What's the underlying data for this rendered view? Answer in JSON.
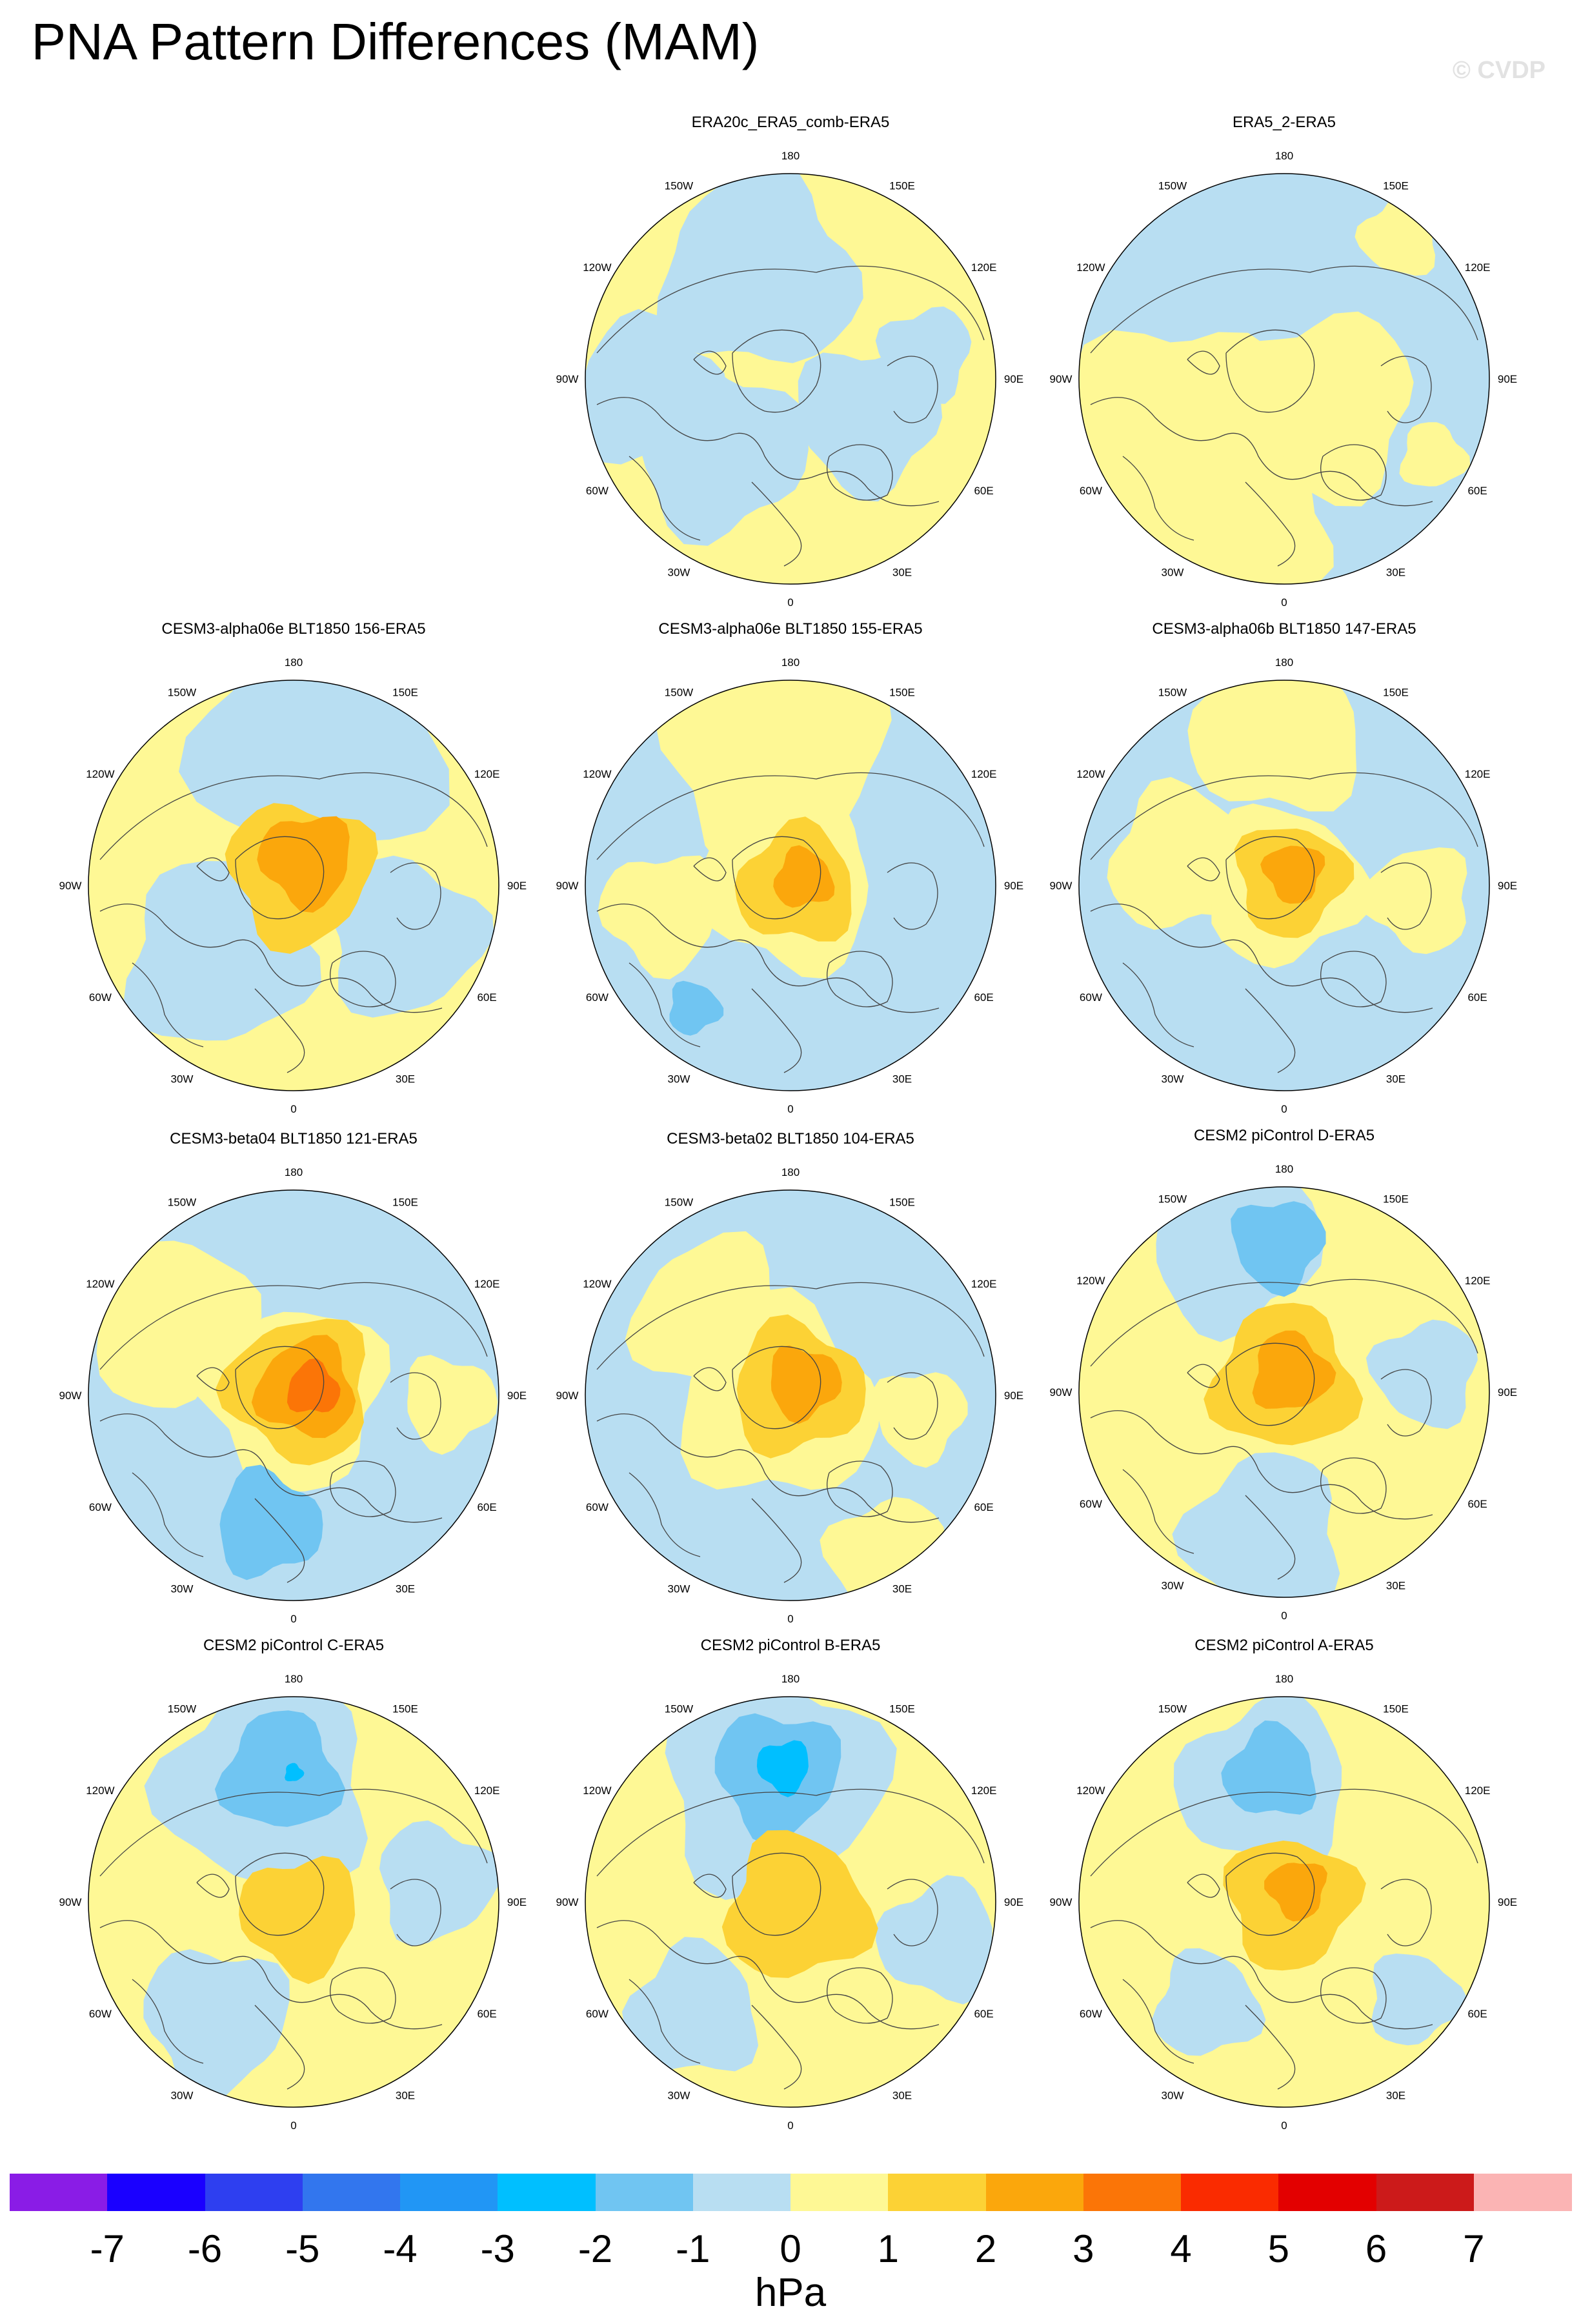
{
  "title": "PNA Pattern Differences (MAM)",
  "watermark": "© CVDP",
  "units": "hPa",
  "longitude_labels": [
    "180",
    "150E",
    "120E",
    "90E",
    "60E",
    "30E",
    "0",
    "30W",
    "60W",
    "90W",
    "120W",
    "150W"
  ],
  "colorbar": {
    "levels": [
      "-7",
      "-6",
      "-5",
      "-4",
      "-3",
      "-2",
      "-1",
      "0",
      "1",
      "2",
      "3",
      "4",
      "5",
      "6",
      "7"
    ],
    "colors": [
      "#8a1ce6",
      "#1a00ff",
      "#2e3ff0",
      "#3276ee",
      "#2196f5",
      "#00bfff",
      "#70c5f2",
      "#b8def2",
      "#fef895",
      "#fcd235",
      "#fba70c",
      "#fb7507",
      "#fa2b00",
      "#e30000",
      "#cc1a1a",
      "#fbb4b4"
    ]
  },
  "panels": [
    {
      "title": "ERA20c_ERA5_comb-ERA5"
    },
    {
      "title": "ERA5_2-ERA5"
    },
    {
      "title": "CESM3-alpha06e BLT1850 156-ERA5"
    },
    {
      "title": "CESM3-alpha06e BLT1850 155-ERA5"
    },
    {
      "title": "CESM3-alpha06b BLT1850 147-ERA5"
    },
    {
      "title": "CESM3-beta04 BLT1850 121-ERA5"
    },
    {
      "title": "CESM3-beta02 BLT1850 104-ERA5"
    },
    {
      "title": "CESM2 piControl D-ERA5"
    },
    {
      "title": "CESM2 piControl C-ERA5"
    },
    {
      "title": "CESM2 piControl B-ERA5"
    },
    {
      "title": "CESM2 piControl A-ERA5"
    }
  ]
}
